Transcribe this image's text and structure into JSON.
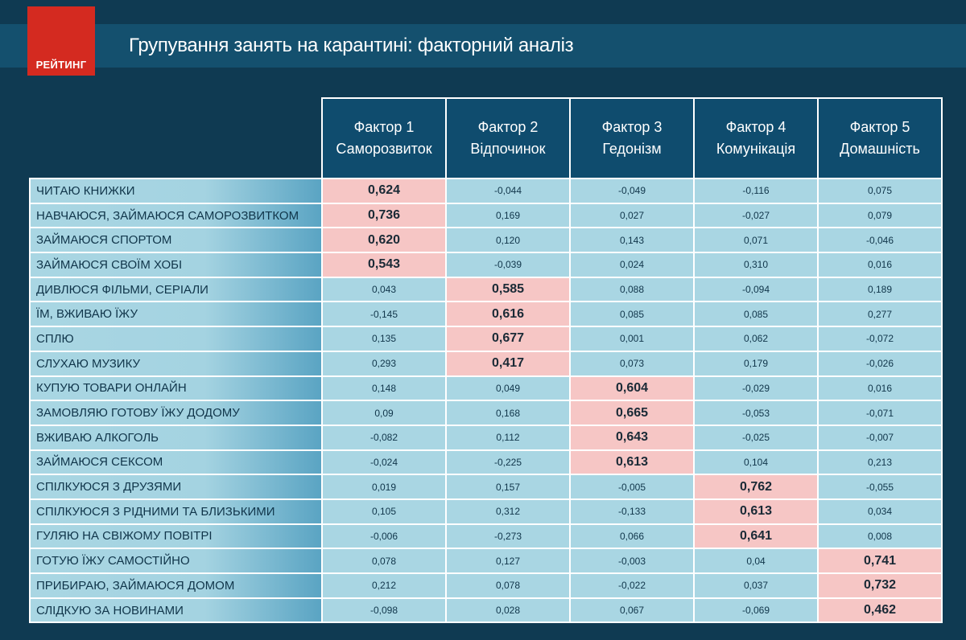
{
  "logo": {
    "text": "РЕЙТИНГ"
  },
  "title": "Групування занять на карантині: факторний аналіз",
  "colors": {
    "background": "#0f3a52",
    "header": "#0f4c6e",
    "cell": "#a9d6e3",
    "highlight": "#f6c6c5",
    "logo": "#d42a20"
  },
  "chart_data": {
    "type": "table",
    "columns": [
      {
        "line1": "Фактор 1",
        "line2": "Саморозвиток"
      },
      {
        "line1": "Фактор 2",
        "line2": "Відпочинок"
      },
      {
        "line1": "Фактор 3",
        "line2": "Гедонізм"
      },
      {
        "line1": "Фактор 4",
        "line2": "Комунікація"
      },
      {
        "line1": "Фактор 5",
        "line2": "Домашність"
      }
    ],
    "rows": [
      {
        "label": "Читаю книжки",
        "values": [
          "0,624",
          "-0,044",
          "-0,049",
          "-0,116",
          "0,075"
        ],
        "highlight": 0
      },
      {
        "label": "Навчаюся, займаюся саморозвитком",
        "values": [
          "0,736",
          "0,169",
          "0,027",
          "-0,027",
          "0,079"
        ],
        "highlight": 0
      },
      {
        "label": "Займаюся спортом",
        "values": [
          "0,620",
          "0,120",
          "0,143",
          "0,071",
          "-0,046"
        ],
        "highlight": 0
      },
      {
        "label": "Займаюся своїм хобі",
        "values": [
          "0,543",
          "-0,039",
          "0,024",
          "0,310",
          "0,016"
        ],
        "highlight": 0
      },
      {
        "label": "Дивлюся фільми, серіали",
        "values": [
          "0,043",
          "0,585",
          "0,088",
          "-0,094",
          "0,189"
        ],
        "highlight": 1
      },
      {
        "label": "Їм, вживаю їжу",
        "values": [
          "-0,145",
          "0,616",
          "0,085",
          "0,085",
          "0,277"
        ],
        "highlight": 1
      },
      {
        "label": "Сплю",
        "values": [
          "0,135",
          "0,677",
          "0,001",
          "0,062",
          "-0,072"
        ],
        "highlight": 1
      },
      {
        "label": "Слухаю музику",
        "values": [
          "0,293",
          "0,417",
          "0,073",
          "0,179",
          "-0,026"
        ],
        "highlight": 1
      },
      {
        "label": "Купую товари онлайн",
        "values": [
          "0,148",
          "0,049",
          "0,604",
          "-0,029",
          "0,016"
        ],
        "highlight": 2
      },
      {
        "label": "Замовляю готову їжу додому",
        "values": [
          "0,09",
          "0,168",
          "0,665",
          "-0,053",
          "-0,071"
        ],
        "highlight": 2
      },
      {
        "label": "Вживаю алкоголь",
        "values": [
          "-0,082",
          "0,112",
          "0,643",
          "-0,025",
          "-0,007"
        ],
        "highlight": 2
      },
      {
        "label": "Займаюся сексом",
        "values": [
          "-0,024",
          "-0,225",
          "0,613",
          "0,104",
          "0,213"
        ],
        "highlight": 2
      },
      {
        "label": "Спілкуюся з друзями",
        "values": [
          "0,019",
          "0,157",
          "-0,005",
          "0,762",
          "-0,055"
        ],
        "highlight": 3
      },
      {
        "label": "Спілкуюся з рідними та близькими",
        "values": [
          "0,105",
          "0,312",
          "-0,133",
          "0,613",
          "0,034"
        ],
        "highlight": 3
      },
      {
        "label": "Гуляю на свіжому повітрі",
        "values": [
          "-0,006",
          "-0,273",
          "0,066",
          "0,641",
          "0,008"
        ],
        "highlight": 3
      },
      {
        "label": "Готую їжу самостійно",
        "values": [
          "0,078",
          "0,127",
          "-0,003",
          "0,04",
          "0,741"
        ],
        "highlight": 4
      },
      {
        "label": "Прибираю, займаюся домом",
        "values": [
          "0,212",
          "0,078",
          "-0,022",
          "0,037",
          "0,732"
        ],
        "highlight": 4
      },
      {
        "label": "Слідкую за новинами",
        "values": [
          "-0,098",
          "0,028",
          "0,067",
          "-0,069",
          "0,462"
        ],
        "highlight": 4
      }
    ]
  }
}
